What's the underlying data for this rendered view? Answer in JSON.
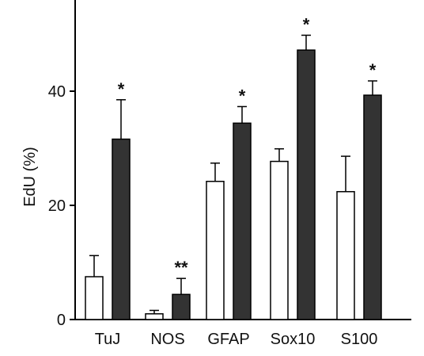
{
  "colors": {
    "axis": "#000000",
    "control_fill": "#ffffff",
    "treated_fill": "#333333",
    "outline": "#000000"
  },
  "chart_data": {
    "type": "bar",
    "ylabel": "EdU (%)",
    "xlabel": "",
    "ylim": [
      0,
      56
    ],
    "yticks": [
      0,
      20,
      40
    ],
    "categories": [
      "TuJ",
      "NOS",
      "GFAP",
      "Sox10",
      "S100"
    ],
    "series": [
      {
        "style": "open",
        "values": [
          7.5,
          1.0,
          24.2,
          27.7,
          22.4
        ],
        "errors": [
          3.7,
          0.6,
          3.2,
          2.2,
          6.2
        ]
      },
      {
        "style": "filled",
        "values": [
          31.6,
          4.4,
          34.4,
          47.2,
          39.3
        ],
        "errors": [
          6.9,
          2.8,
          2.9,
          2.6,
          2.5
        ]
      }
    ],
    "significance": [
      "*",
      "**",
      "*",
      "*",
      "*"
    ]
  }
}
